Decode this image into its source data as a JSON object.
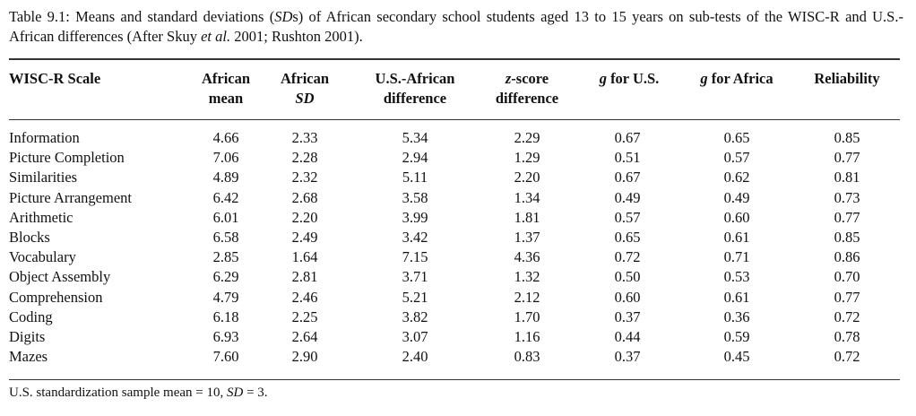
{
  "caption": [
    "Table 9.1: Means and standard deviations (",
    "SD",
    "s) of African secondary school students aged 13 to 15 years on sub-tests of the WISC-R and U.S.-African differences (After Skuy ",
    "et al.",
    " 2001; Rushton 2001)."
  ],
  "header": [
    [
      "WISC-R Scale"
    ],
    [
      "African",
      "mean"
    ],
    [
      "African",
      "SD"
    ],
    [
      "U.S.-African",
      "difference"
    ],
    [
      "z",
      "-score",
      "difference"
    ],
    [
      "g",
      " for U.S."
    ],
    [
      "g",
      " for Africa"
    ],
    [
      "Reliability"
    ]
  ],
  "rows": [
    [
      "Information",
      "4.66",
      "2.33",
      "5.34",
      "2.29",
      "0.67",
      "0.65",
      "0.85"
    ],
    [
      "Picture Completion",
      "7.06",
      "2.28",
      "2.94",
      "1.29",
      "0.51",
      "0.57",
      "0.77"
    ],
    [
      "Similarities",
      "4.89",
      "2.32",
      "5.11",
      "2.20",
      "0.67",
      "0.62",
      "0.81"
    ],
    [
      "Picture Arrangement",
      "6.42",
      "2.68",
      "3.58",
      "1.34",
      "0.49",
      "0.49",
      "0.73"
    ],
    [
      "Arithmetic",
      "6.01",
      "2.20",
      "3.99",
      "1.81",
      "0.57",
      "0.60",
      "0.77"
    ],
    [
      "Blocks",
      "6.58",
      "2.49",
      "3.42",
      "1.37",
      "0.65",
      "0.61",
      "0.85"
    ],
    [
      "Vocabulary",
      "2.85",
      "1.64",
      "7.15",
      "4.36",
      "0.72",
      "0.71",
      "0.86"
    ],
    [
      "Object Assembly",
      "6.29",
      "2.81",
      "3.71",
      "1.32",
      "0.50",
      "0.53",
      "0.70"
    ],
    [
      "Comprehension",
      "4.79",
      "2.46",
      "5.21",
      "2.12",
      "0.60",
      "0.61",
      "0.77"
    ],
    [
      "Coding",
      "6.18",
      "2.25",
      "3.82",
      "1.70",
      "0.37",
      "0.36",
      "0.72"
    ],
    [
      "Digits",
      "6.93",
      "2.64",
      "3.07",
      "1.16",
      "0.44",
      "0.59",
      "0.78"
    ],
    [
      "Mazes",
      "7.60",
      "2.90",
      "2.40",
      "0.83",
      "0.37",
      "0.45",
      "0.72"
    ]
  ],
  "footnote": [
    "U.S. standardization sample mean = 10, ",
    "SD",
    " = 3."
  ]
}
